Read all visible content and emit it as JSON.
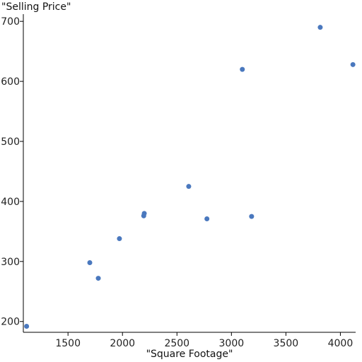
{
  "chart_data": {
    "type": "scatter",
    "title": "",
    "xlabel": "\"Square Footage\"",
    "ylabel": "\"Selling Price\"",
    "x_ticks": [
      "1500",
      "2000",
      "2500",
      "3000",
      "3500",
      "4000"
    ],
    "y_ticks": [
      "200",
      "300",
      "400",
      "500",
      "600",
      "700"
    ],
    "xlim": [
      1090,
      4140
    ],
    "ylim": [
      182,
      712
    ],
    "grid": false,
    "legend": "none",
    "point_color": "#4a78be",
    "series": [
      {
        "points": [
          {
            "x": 1120,
            "y": 192
          },
          {
            "x": 1700,
            "y": 298
          },
          {
            "x": 1778,
            "y": 272
          },
          {
            "x": 1972,
            "y": 338
          },
          {
            "x": 2195,
            "y": 376
          },
          {
            "x": 2200,
            "y": 380
          },
          {
            "x": 2608,
            "y": 425
          },
          {
            "x": 2775,
            "y": 371
          },
          {
            "x": 3100,
            "y": 620
          },
          {
            "x": 3185,
            "y": 375
          },
          {
            "x": 3815,
            "y": 690
          },
          {
            "x": 4115,
            "y": 628
          }
        ]
      }
    ]
  }
}
